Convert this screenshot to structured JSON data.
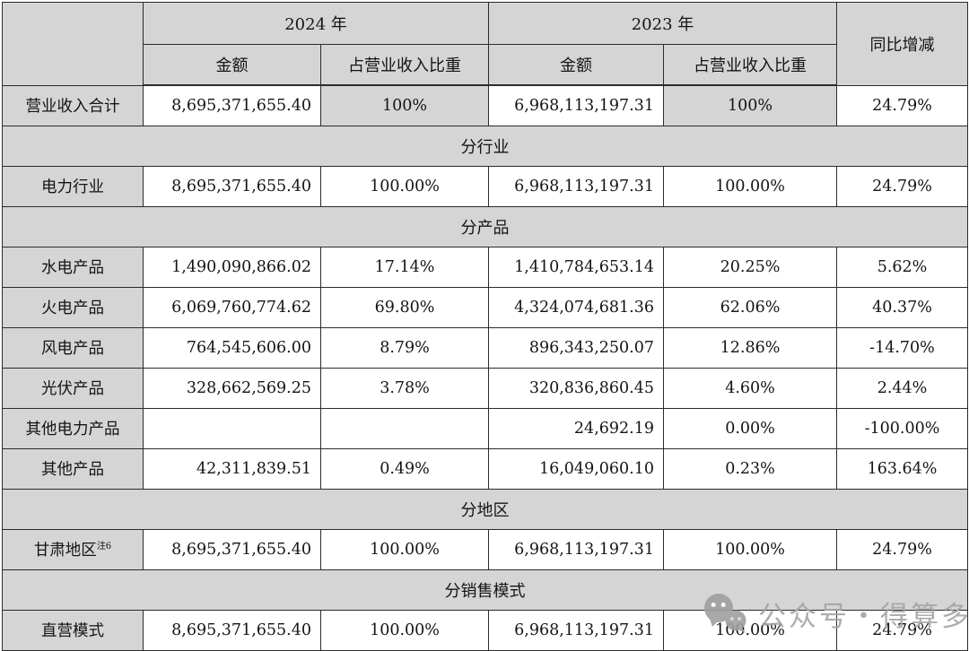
{
  "table": {
    "header": {
      "year_2024": "2024 年",
      "year_2023": "2023 年",
      "yoy": "同比增减",
      "amount": "金额",
      "share": "占营业收入比重"
    },
    "rows": [
      {
        "type": "data",
        "label": "营业收入合计",
        "a24": "8,695,371,655.40",
        "p24": "100%",
        "a23": "6,968,113,197.31",
        "p23": "100%",
        "yoy": "24.79%",
        "gray_cells": [
          "p24",
          "p23"
        ]
      },
      {
        "type": "section",
        "label": "分行业"
      },
      {
        "type": "data",
        "label": "电力行业",
        "a24": "8,695,371,655.40",
        "p24": "100.00%",
        "a23": "6,968,113,197.31",
        "p23": "100.00%",
        "yoy": "24.79%"
      },
      {
        "type": "section",
        "label": "分产品"
      },
      {
        "type": "data",
        "label": "水电产品",
        "a24": "1,490,090,866.02",
        "p24": "17.14%",
        "a23": "1,410,784,653.14",
        "p23": "20.25%",
        "yoy": "5.62%"
      },
      {
        "type": "data",
        "label": "火电产品",
        "a24": "6,069,760,774.62",
        "p24": "69.80%",
        "a23": "4,324,074,681.36",
        "p23": "62.06%",
        "yoy": "40.37%"
      },
      {
        "type": "data",
        "label": "风电产品",
        "a24": "764,545,606.00",
        "p24": "8.79%",
        "a23": "896,343,250.07",
        "p23": "12.86%",
        "yoy": "-14.70%"
      },
      {
        "type": "data",
        "label": "光伏产品",
        "a24": "328,662,569.25",
        "p24": "3.78%",
        "a23": "320,836,860.45",
        "p23": "4.60%",
        "yoy": "2.44%"
      },
      {
        "type": "data",
        "label": "其他电力产品",
        "a24": "",
        "p24": "",
        "a23": "24,692.19",
        "p23": "0.00%",
        "yoy": "-100.00%"
      },
      {
        "type": "data",
        "label": "其他产品",
        "a24": "42,311,839.51",
        "p24": "0.49%",
        "a23": "16,049,060.10",
        "p23": "0.23%",
        "yoy": "163.64%"
      },
      {
        "type": "section",
        "label": "分地区"
      },
      {
        "type": "data",
        "label": "甘肃地区",
        "sup": "注6",
        "a24": "8,695,371,655.40",
        "p24": "100.00%",
        "a23": "6,968,113,197.31",
        "p23": "100.00%",
        "yoy": "24.79%"
      },
      {
        "type": "section",
        "label": "分销售模式"
      },
      {
        "type": "data",
        "label": "直营模式",
        "a24": "8,695,371,655.40",
        "p24": "100.00%",
        "a23": "6,968,113,197.31",
        "p23": "100.00%",
        "yoy": "24.79%"
      }
    ]
  },
  "watermark": {
    "icon": "wechat-icon",
    "text": "公众号・得算多"
  },
  "colors": {
    "cell_gray": "#d5d5d5",
    "border": "#2b2b2b",
    "watermark_gray": "#a5a5a5",
    "text": "#141414"
  }
}
